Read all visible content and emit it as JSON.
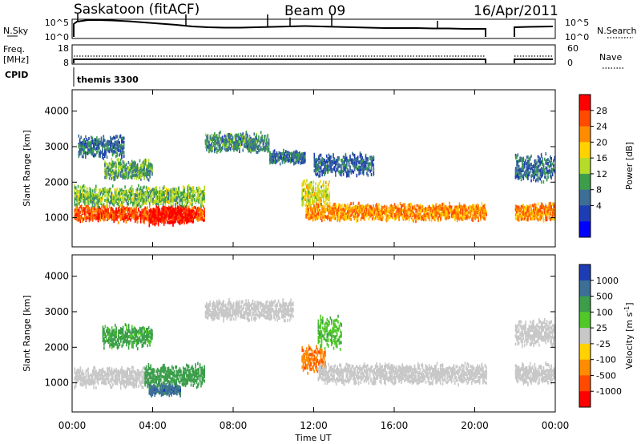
{
  "header": {
    "station": "Saskatoon (fitACF)",
    "beam": "Beam 09",
    "date": "16/Apr/2011"
  },
  "status_panels": {
    "nsky_label": "N.Sky",
    "nsky_ticks": [
      "10^5",
      "10^0"
    ],
    "nsearch_label": "N.Search",
    "nsearch_ticks": [
      "10^5",
      "10^0"
    ],
    "freq_label": "Freq.",
    "freq_unit": "[MHz]",
    "freq_ticks": [
      "18",
      "8"
    ],
    "nave_label": "Nave",
    "nave_ticks": [
      "60",
      "0"
    ],
    "cpid_label": "CPID",
    "cpid_value": "themis 3300"
  },
  "colorbars": {
    "power": {
      "title": "Power [dB]",
      "ticks": [
        "28",
        "24",
        "20",
        "16",
        "12",
        "8",
        "4"
      ],
      "colors": [
        "#ff0000",
        "#ff4a00",
        "#ff8c00",
        "#ffd200",
        "#b4dc28",
        "#3c9e4b",
        "#3c6e96",
        "#1e3cb4",
        "#0000ff"
      ]
    },
    "velocity": {
      "title": "Velocity [m s^-1]",
      "ticks": [
        "1000",
        "500",
        "100",
        "25",
        "-25",
        "-100",
        "-500",
        "-1000"
      ],
      "colors": [
        "#1e3cb4",
        "#3c6e96",
        "#3c9e4b",
        "#50c828",
        "#c8c8c8",
        "#ffd200",
        "#ff8c00",
        "#ff4a00",
        "#ff0000"
      ]
    }
  },
  "chart_data": [
    {
      "type": "heatmap",
      "title": "Power [dB]",
      "xlabel": "",
      "ylabel": "Slant Range [km]",
      "xlim": [
        0,
        24
      ],
      "ylim": [
        180,
        4600
      ],
      "x_ticks": [
        "00:00",
        "04:00",
        "08:00",
        "12:00",
        "16:00",
        "20:00",
        "00:00"
      ],
      "y_ticks": [
        1000,
        2000,
        3000,
        4000
      ],
      "data_gap": [
        20.6,
        21.9
      ],
      "features": [
        {
          "t0": 0.1,
          "t1": 6.6,
          "r_center": 1100,
          "r_width": 350,
          "value": 26
        },
        {
          "t0": 3.8,
          "t1": 6.0,
          "r_center": 1050,
          "r_width": 420,
          "value": 30
        },
        {
          "t0": 0.1,
          "t1": 6.6,
          "r_center": 1600,
          "r_width": 450,
          "value": 12
        },
        {
          "t0": 1.6,
          "t1": 4.0,
          "r_center": 2350,
          "r_width": 450,
          "value": 10
        },
        {
          "t0": 0.3,
          "t1": 2.6,
          "r_center": 3000,
          "r_width": 500,
          "value": 6
        },
        {
          "t0": 6.6,
          "t1": 9.8,
          "r_center": 3100,
          "r_width": 450,
          "value": 8
        },
        {
          "t0": 9.8,
          "t1": 11.6,
          "r_center": 2700,
          "r_width": 300,
          "value": 6
        },
        {
          "t0": 11.6,
          "t1": 20.6,
          "r_center": 1150,
          "r_width": 380,
          "value": 22
        },
        {
          "t0": 11.4,
          "t1": 12.8,
          "r_center": 1700,
          "r_width": 600,
          "value": 16
        },
        {
          "t0": 12.0,
          "t1": 15.0,
          "r_center": 2500,
          "r_width": 500,
          "value": 5
        },
        {
          "t0": 22.0,
          "t1": 24.0,
          "r_center": 1150,
          "r_width": 380,
          "value": 22
        },
        {
          "t0": 22.0,
          "t1": 24.0,
          "r_center": 2400,
          "r_width": 600,
          "value": 6
        }
      ]
    },
    {
      "type": "heatmap",
      "title": "Velocity [m s^-1]",
      "xlabel": "Time UT",
      "ylabel": "Slant Range [km]",
      "xlim": [
        0,
        24
      ],
      "ylim": [
        180,
        4600
      ],
      "x_ticks": [
        "00:00",
        "04:00",
        "08:00",
        "12:00",
        "16:00",
        "20:00",
        "00:00"
      ],
      "y_ticks": [
        1000,
        2000,
        3000,
        4000
      ],
      "data_gap": [
        20.6,
        21.9
      ],
      "features": [
        {
          "t0": 0.1,
          "t1": 4.0,
          "r_center": 1150,
          "r_width": 450,
          "value": 0
        },
        {
          "t0": 3.6,
          "t1": 6.6,
          "r_center": 1200,
          "r_width": 500,
          "value": 200
        },
        {
          "t0": 3.8,
          "t1": 5.4,
          "r_center": 800,
          "r_width": 250,
          "value": 700
        },
        {
          "t0": 1.5,
          "t1": 4.0,
          "r_center": 2300,
          "r_width": 500,
          "value": 150
        },
        {
          "t0": 6.6,
          "t1": 11.0,
          "r_center": 3050,
          "r_width": 450,
          "value": 0
        },
        {
          "t0": 11.4,
          "t1": 12.6,
          "r_center": 1650,
          "r_width": 600,
          "value": -400
        },
        {
          "t0": 12.2,
          "t1": 13.4,
          "r_center": 2400,
          "r_width": 700,
          "value": 80
        },
        {
          "t0": 12.2,
          "t1": 20.6,
          "r_center": 1250,
          "r_width": 450,
          "value": 0
        },
        {
          "t0": 22.0,
          "t1": 24.0,
          "r_center": 1250,
          "r_width": 450,
          "value": 0
        },
        {
          "t0": 22.0,
          "t1": 24.0,
          "r_center": 2400,
          "r_width": 600,
          "value": 0
        }
      ]
    }
  ],
  "time_axis_label": "Time UT"
}
